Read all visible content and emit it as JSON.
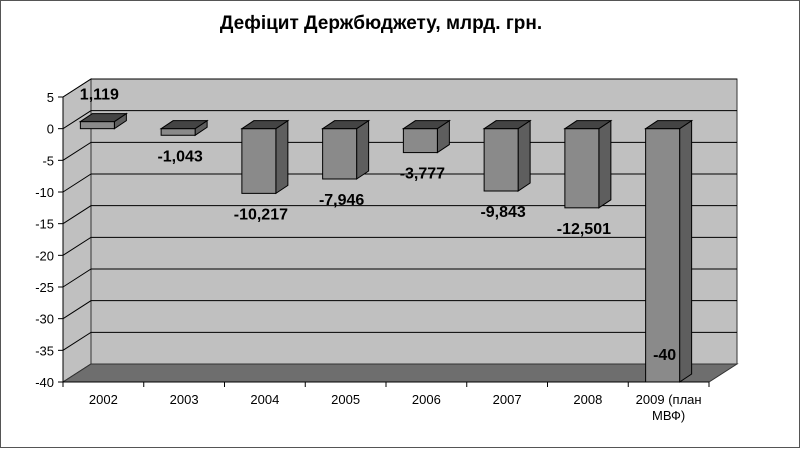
{
  "chart_data": {
    "type": "bar",
    "title": "Дефіцит Держбюджету, млрд. грн.",
    "categories": [
      "2002",
      "2003",
      "2004",
      "2005",
      "2006",
      "2007",
      "2008",
      "2009 (план МВФ)"
    ],
    "category_lines": [
      [
        "2002"
      ],
      [
        "2003"
      ],
      [
        "2004"
      ],
      [
        "2005"
      ],
      [
        "2006"
      ],
      [
        "2007"
      ],
      [
        "2008"
      ],
      [
        "2009 (план",
        "МВФ)"
      ]
    ],
    "values": [
      1.119,
      -1.043,
      -10.217,
      -7.946,
      -3.777,
      -9.843,
      -12.501,
      -40
    ],
    "data_labels": [
      "1,119",
      "-1,043",
      "-10,217",
      "-7,946",
      "-3,777",
      "-9,843",
      "-12,501",
      "-40"
    ],
    "ylim": [
      -40,
      5
    ],
    "yticks": [
      5,
      0,
      -5,
      -10,
      -15,
      -20,
      -25,
      -30,
      -35,
      -40
    ],
    "grid": true,
    "legend": "none",
    "colors": {
      "wall": "#c0c0c0",
      "floor": "#6e6e6e",
      "bar_front": "#8a8a8a",
      "bar_top": "#444444",
      "bar_side": "#5e5e5e",
      "grid": "#000000"
    }
  }
}
